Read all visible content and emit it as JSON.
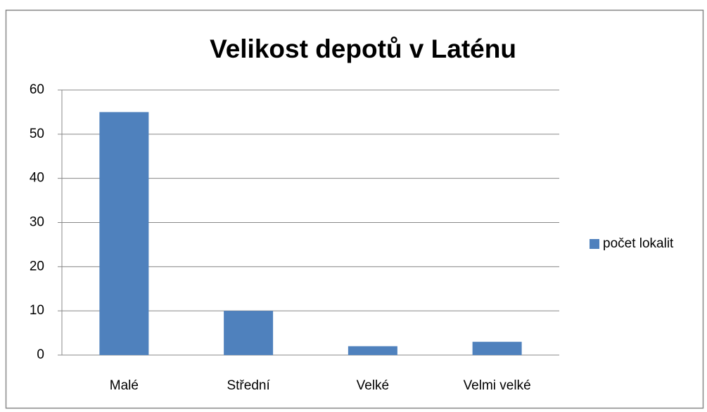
{
  "chart_data": {
    "type": "bar",
    "title": "Velikost depotů v Laténu",
    "categories": [
      "Malé",
      "Střední",
      "Velké",
      "Velmi velké"
    ],
    "series": [
      {
        "name": "počet lokalit",
        "color": "#4f81bd",
        "values": [
          55,
          10,
          2,
          3
        ]
      }
    ],
    "ylim": [
      0,
      60
    ],
    "yticks": [
      0,
      10,
      20,
      30,
      40,
      50,
      60
    ],
    "grid": true,
    "legend": "right"
  }
}
